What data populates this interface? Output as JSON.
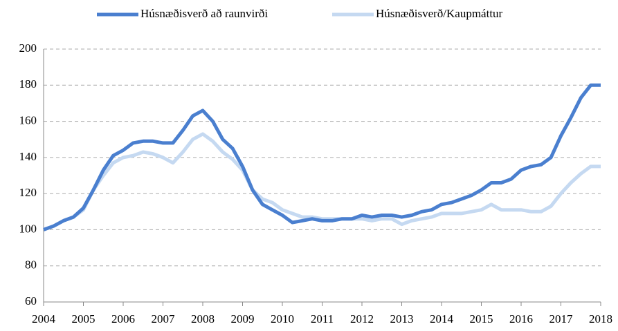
{
  "chart_data": {
    "type": "line",
    "x": [
      2004,
      2004.25,
      2004.5,
      2004.75,
      2005,
      2005.25,
      2005.5,
      2005.75,
      2006,
      2006.25,
      2006.5,
      2006.75,
      2007,
      2007.25,
      2007.5,
      2007.75,
      2008,
      2008.25,
      2008.5,
      2008.75,
      2009,
      2009.25,
      2009.5,
      2009.75,
      2010,
      2010.25,
      2010.5,
      2010.75,
      2011,
      2011.25,
      2011.5,
      2011.75,
      2012,
      2012.25,
      2012.5,
      2012.75,
      2013,
      2013.25,
      2013.5,
      2013.75,
      2014,
      2014.25,
      2014.5,
      2014.75,
      2015,
      2015.25,
      2015.5,
      2015.75,
      2016,
      2016.25,
      2016.5,
      2016.75,
      2017,
      2017.25,
      2017.5,
      2017.75,
      2018
    ],
    "series": [
      {
        "name": "Húsnæðisverð að raunvirði",
        "color": "#4a7fcf",
        "values": [
          100,
          102,
          105,
          107,
          112,
          122,
          133,
          141,
          144,
          148,
          149,
          149,
          148,
          148,
          155,
          163,
          166,
          160,
          150,
          145,
          135,
          122,
          114,
          111,
          108,
          104,
          105,
          106,
          105,
          105,
          106,
          106,
          108,
          107,
          108,
          108,
          107,
          108,
          110,
          111,
          114,
          115,
          117,
          119,
          122,
          126,
          126,
          128,
          133,
          135,
          136,
          140,
          152,
          162,
          173,
          180,
          180
        ]
      },
      {
        "name": "Húsnæðisverð/Kaupmáttur",
        "color": "#c5d9f1",
        "values": [
          100,
          102,
          105,
          107,
          111,
          122,
          130,
          137,
          140,
          141,
          143,
          142,
          140,
          137,
          143,
          150,
          153,
          149,
          143,
          139,
          133,
          122,
          117,
          115,
          111,
          109,
          107,
          107,
          106,
          106,
          106,
          106,
          106,
          105,
          106,
          106,
          103,
          105,
          106,
          107,
          109,
          109,
          109,
          110,
          111,
          114,
          111,
          111,
          111,
          110,
          110,
          113,
          120,
          126,
          131,
          135,
          135
        ]
      }
    ],
    "xlim": [
      2004,
      2018
    ],
    "xticks": [
      2004,
      2005,
      2006,
      2007,
      2008,
      2009,
      2010,
      2011,
      2012,
      2013,
      2014,
      2015,
      2016,
      2017,
      2018
    ],
    "ylim": [
      60,
      200
    ],
    "yticks": [
      60,
      80,
      100,
      120,
      140,
      160,
      180,
      200
    ],
    "grid": true,
    "legend": "top"
  }
}
